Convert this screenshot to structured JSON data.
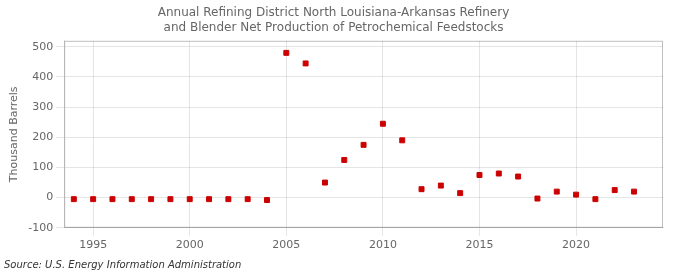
{
  "chart_data": {
    "type": "scatter",
    "title": "Annual Refining District North Louisiana-Arkansas Refinery and Blender Net Production of Petrochemical Feedstocks",
    "ylabel": "Thousand Barrels",
    "annotation": "Source: U.S. Energy Information Administration",
    "x": [
      1994,
      1995,
      1996,
      1997,
      1998,
      1999,
      2000,
      2001,
      2002,
      2003,
      2004,
      2005,
      2006,
      2007,
      2008,
      2009,
      2010,
      2011,
      2012,
      2013,
      2014,
      2015,
      2016,
      2017,
      2018,
      2019,
      2020,
      2021,
      2022,
      2023
    ],
    "values": [
      -5,
      -5,
      -5,
      -5,
      -5,
      -5,
      -5,
      -5,
      -5,
      -5,
      -8,
      480,
      445,
      50,
      125,
      175,
      245,
      190,
      28,
      40,
      15,
      75,
      80,
      70,
      -3,
      20,
      10,
      -5,
      25,
      20
    ],
    "color": "#cc0000",
    "marker": "square",
    "xlim": [
      1993.5,
      2024.5
    ],
    "xticks": [
      1995,
      2000,
      2005,
      2010,
      2015,
      2020
    ],
    "ylim": [
      -100,
      520
    ],
    "yticks": [
      -100,
      0,
      100,
      200,
      300,
      400,
      500
    ],
    "grid": true
  }
}
